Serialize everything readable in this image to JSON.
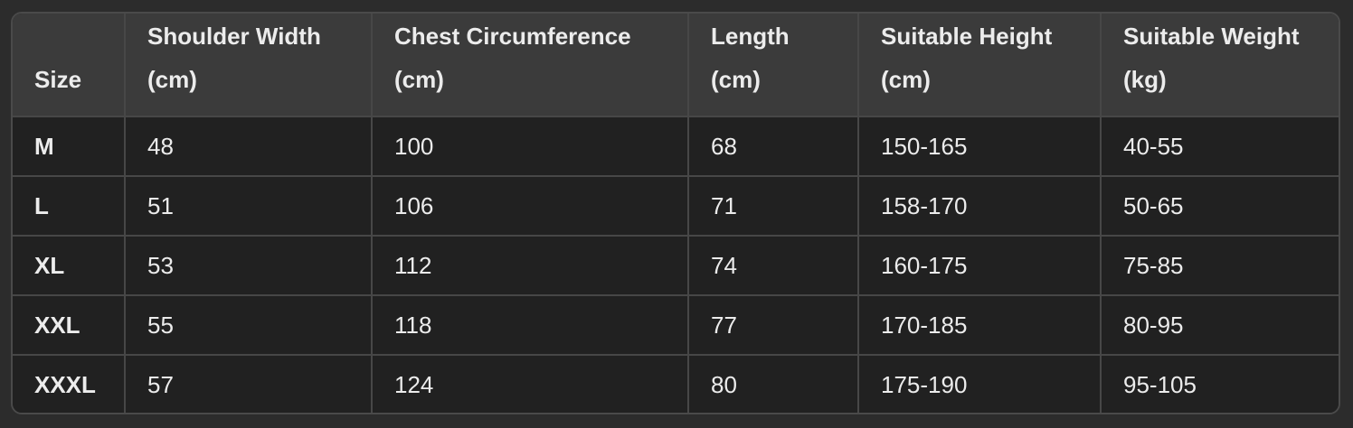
{
  "table": {
    "headers": [
      [
        "Size"
      ],
      [
        "Shoulder Width",
        "(cm)"
      ],
      [
        "Chest Circumference",
        "(cm)"
      ],
      [
        "Length",
        "(cm)"
      ],
      [
        "Suitable Height",
        "(cm)"
      ],
      [
        "Suitable Weight",
        "(kg)"
      ]
    ],
    "rows": [
      [
        "M",
        "48",
        "100",
        "68",
        "150-165",
        "40-55"
      ],
      [
        "L",
        "51",
        "106",
        "71",
        "158-170",
        "50-65"
      ],
      [
        "XL",
        "53",
        "112",
        "74",
        "160-175",
        "75-85"
      ],
      [
        "XXL",
        "55",
        "118",
        "77",
        "170-185",
        "80-95"
      ],
      [
        "XXXL",
        "57",
        "124",
        "80",
        "175-190",
        "95-105"
      ]
    ]
  }
}
